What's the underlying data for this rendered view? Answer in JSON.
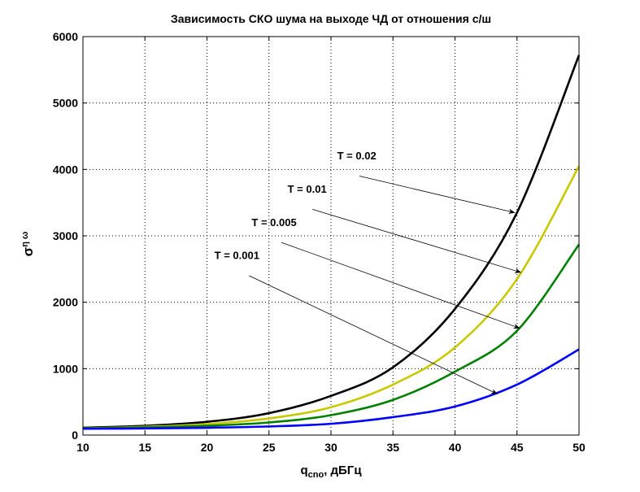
{
  "chart_data": {
    "type": "line",
    "title": "Зависимость СКО шума на выходе ЧД от отношения с/ш",
    "xlabel": "q",
    "xlabel_sub": "cno",
    "xlabel_suffix": ", дБГц",
    "ylabel": "σ",
    "ylabel_sub": "η ω",
    "xlim": [
      10,
      50
    ],
    "ylim": [
      0,
      6000
    ],
    "xticks": [
      10,
      15,
      20,
      25,
      30,
      35,
      40,
      45,
      50
    ],
    "yticks": [
      0,
      1000,
      2000,
      3000,
      4000,
      5000,
      6000
    ],
    "grid": true,
    "x": [
      10,
      15,
      20,
      25,
      30,
      35,
      40,
      45,
      50
    ],
    "series": [
      {
        "name": "T = 0.02",
        "color": "#000000",
        "values": [
          110,
          140,
          200,
          330,
          590,
          1020,
          1900,
          3350,
          5720
        ]
      },
      {
        "name": "T = 0.01",
        "color": "#c8c800",
        "values": [
          100,
          125,
          165,
          250,
          420,
          760,
          1320,
          2350,
          4050
        ]
      },
      {
        "name": "T = 0.005",
        "color": "#008000",
        "values": [
          100,
          115,
          140,
          190,
          300,
          530,
          955,
          1570,
          2870
        ]
      },
      {
        "name": "T = 0.001",
        "color": "#0000ff",
        "values": [
          95,
          100,
          110,
          130,
          170,
          270,
          430,
          760,
          1290
        ]
      }
    ],
    "annotations": [
      {
        "text": "T = 0.02",
        "label_at": [
          30.5,
          4150
        ],
        "arrow_from": [
          32.3,
          3900
        ],
        "arrow_to": [
          44.8,
          3350
        ]
      },
      {
        "text": "T = 0.01",
        "label_at": [
          26.5,
          3650
        ],
        "arrow_from": [
          28.5,
          3400
        ],
        "arrow_to": [
          45.3,
          2450
        ]
      },
      {
        "text": "T = 0.005",
        "label_at": [
          23.6,
          3150
        ],
        "arrow_from": [
          26,
          2900
        ],
        "arrow_to": [
          45.2,
          1610
        ]
      },
      {
        "text": "T = 0.001",
        "label_at": [
          20.6,
          2650
        ],
        "arrow_from": [
          23.4,
          2400
        ],
        "arrow_to": [
          43.4,
          620
        ]
      }
    ]
  }
}
